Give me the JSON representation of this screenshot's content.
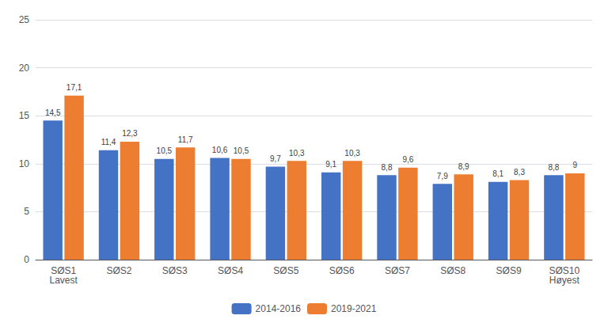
{
  "chart_data": {
    "type": "bar",
    "categories": [
      "SØS1\nLavest",
      "SØS2",
      "SØS3",
      "SØS4",
      "SØS5",
      "SØS6",
      "SØS7",
      "SØS8",
      "SØS9",
      "SØS10\nHøyest"
    ],
    "series": [
      {
        "name": "2014-2016",
        "color": "#4472c4",
        "values": [
          14.5,
          11.4,
          10.5,
          10.6,
          9.7,
          9.1,
          8.8,
          7.9,
          8.1,
          8.8
        ],
        "value_labels": [
          "14,5",
          "11,4",
          "10,5",
          "10,6",
          "9,7",
          "9,1",
          "8,8",
          "7,9",
          "8,1",
          "8,8"
        ]
      },
      {
        "name": "2019-2021",
        "color": "#ed7d31",
        "values": [
          17.1,
          12.3,
          11.7,
          10.5,
          10.3,
          10.3,
          9.6,
          8.9,
          8.3,
          9.0
        ],
        "value_labels": [
          "17,1",
          "12,3",
          "11,7",
          "10,5",
          "10,3",
          "10,3",
          "9,6",
          "8,9",
          "8,3",
          "9"
        ]
      }
    ],
    "ylim": [
      0,
      25
    ],
    "yticks": [
      0,
      5,
      10,
      15,
      20,
      25
    ],
    "grid": true,
    "legend": "bottom",
    "data_labels": true
  }
}
